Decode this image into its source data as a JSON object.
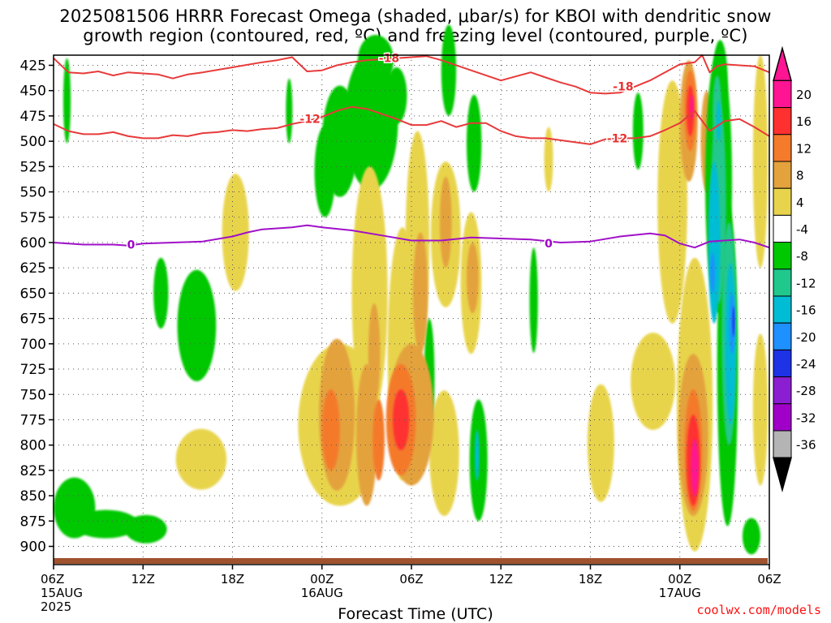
{
  "title_line1": "2025081506 HRRR Forecast Omega (shaded, μbar/s) for KBOI with dendritic snow",
  "title_line2": "growth region (contoured, red, ºC) and freezing level (contoured, purple, ºC)",
  "x_axis_label": "Forecast Time (UTC)",
  "credit": "coolwx.com/models",
  "chart_data": {
    "type": "heatmap",
    "x_ticks": [
      {
        "label": "06Z",
        "sub": [
          "15AUG",
          "2025"
        ],
        "hour": 0
      },
      {
        "label": "12Z",
        "sub": [],
        "hour": 6
      },
      {
        "label": "18Z",
        "sub": [],
        "hour": 12
      },
      {
        "label": "00Z",
        "sub": [
          "16AUG"
        ],
        "hour": 18
      },
      {
        "label": "06Z",
        "sub": [],
        "hour": 24
      },
      {
        "label": "12Z",
        "sub": [],
        "hour": 30
      },
      {
        "label": "18Z",
        "sub": [],
        "hour": 36
      },
      {
        "label": "00Z",
        "sub": [
          "17AUG"
        ],
        "hour": 42
      },
      {
        "label": "06Z",
        "sub": [],
        "hour": 48
      }
    ],
    "y_ticks": [
      425,
      450,
      475,
      500,
      525,
      550,
      575,
      600,
      625,
      650,
      675,
      700,
      725,
      750,
      775,
      800,
      825,
      850,
      875,
      900
    ],
    "y_range": [
      415,
      918
    ],
    "x_range": [
      0,
      48
    ],
    "colorbar": {
      "labels": [
        20,
        16,
        12,
        8,
        4,
        -4,
        -8,
        -12,
        -16,
        -20,
        -24,
        -28,
        -32,
        -36
      ],
      "bins": [
        {
          "color": "#ff1493"
        },
        {
          "color": "#ff3030"
        },
        {
          "color": "#f47a2c"
        },
        {
          "color": "#e4a23c"
        },
        {
          "color": "#e8d44c"
        },
        {
          "color": "#ffffff"
        },
        {
          "color": "#00c800"
        },
        {
          "color": "#20c88c"
        },
        {
          "color": "#00bcd4"
        },
        {
          "color": "#1e90ff"
        },
        {
          "color": "#1e32e6"
        },
        {
          "color": "#8c1ed2"
        },
        {
          "color": "#a000c8"
        },
        {
          "color": "#b4b4b4"
        }
      ]
    },
    "contour_labels": [
      {
        "text": "-18",
        "color": "#e83030"
      },
      {
        "text": "-18",
        "color": "#e83030"
      },
      {
        "text": "-12",
        "color": "#e83030"
      },
      {
        "text": "-12",
        "color": "#e83030"
      },
      {
        "text": "0",
        "color": "#a000c8"
      },
      {
        "text": "0",
        "color": "#a000c8"
      }
    ],
    "freezing_level": [
      [
        0,
        600
      ],
      [
        2,
        602
      ],
      [
        4,
        602
      ],
      [
        5,
        603
      ],
      [
        6,
        601
      ],
      [
        8,
        600
      ],
      [
        10,
        599
      ],
      [
        12,
        594
      ],
      [
        13,
        590
      ],
      [
        14,
        587
      ],
      [
        16,
        585
      ],
      [
        17,
        583
      ],
      [
        18,
        585
      ],
      [
        20,
        588
      ],
      [
        22,
        593
      ],
      [
        24,
        598
      ],
      [
        26,
        598
      ],
      [
        28,
        595
      ],
      [
        30,
        596
      ],
      [
        32,
        597
      ],
      [
        34,
        600
      ],
      [
        36,
        599
      ],
      [
        38,
        594
      ],
      [
        40,
        591
      ],
      [
        41,
        593
      ],
      [
        42,
        601
      ],
      [
        43,
        605
      ],
      [
        44,
        599
      ],
      [
        45,
        598
      ],
      [
        46,
        597
      ],
      [
        47,
        600
      ],
      [
        48,
        605
      ]
    ],
    "dgz_top": [
      [
        0,
        418
      ],
      [
        1,
        432
      ],
      [
        2,
        433
      ],
      [
        3,
        431
      ],
      [
        4,
        435
      ],
      [
        5,
        432
      ],
      [
        6,
        433
      ],
      [
        7,
        434
      ],
      [
        8,
        438
      ],
      [
        9,
        434
      ],
      [
        10,
        432
      ],
      [
        12,
        427
      ],
      [
        14,
        422
      ],
      [
        15,
        420
      ],
      [
        16,
        417
      ],
      [
        17,
        431
      ],
      [
        18,
        430
      ],
      [
        19,
        425
      ],
      [
        20,
        422
      ],
      [
        21,
        420
      ],
      [
        22,
        419
      ],
      [
        23,
        418
      ],
      [
        24,
        417
      ],
      [
        25,
        416
      ],
      [
        26,
        420
      ],
      [
        28,
        430
      ],
      [
        30,
        440
      ],
      [
        31,
        436
      ],
      [
        32,
        432
      ],
      [
        33,
        437
      ],
      [
        34,
        442
      ],
      [
        35,
        446
      ],
      [
        36,
        452
      ],
      [
        37,
        453
      ],
      [
        38,
        452
      ],
      [
        39,
        446
      ],
      [
        40,
        440
      ],
      [
        41,
        432
      ],
      [
        42,
        424
      ],
      [
        43,
        422
      ],
      [
        43.5,
        415
      ],
      [
        44,
        432
      ],
      [
        44.5,
        426
      ],
      [
        45,
        424
      ],
      [
        46,
        425
      ],
      [
        47,
        426
      ],
      [
        48,
        432
      ]
    ],
    "dgz_bottom": [
      [
        0,
        483
      ],
      [
        1,
        490
      ],
      [
        2,
        493
      ],
      [
        3,
        493
      ],
      [
        4,
        491
      ],
      [
        5,
        495
      ],
      [
        6,
        497
      ],
      [
        7,
        497
      ],
      [
        8,
        494
      ],
      [
        9,
        495
      ],
      [
        10,
        492
      ],
      [
        11,
        491
      ],
      [
        12,
        489
      ],
      [
        13,
        490
      ],
      [
        14,
        488
      ],
      [
        15,
        487
      ],
      [
        16,
        483
      ],
      [
        17,
        480
      ],
      [
        18,
        476
      ],
      [
        19,
        470
      ],
      [
        20,
        466
      ],
      [
        21,
        468
      ],
      [
        22,
        473
      ],
      [
        23,
        478
      ],
      [
        24,
        484
      ],
      [
        25,
        484
      ],
      [
        26,
        480
      ],
      [
        27,
        486
      ],
      [
        28,
        482
      ],
      [
        29,
        482
      ],
      [
        30,
        490
      ],
      [
        31,
        495
      ],
      [
        32,
        497
      ],
      [
        33,
        497
      ],
      [
        34,
        499
      ],
      [
        35,
        501
      ],
      [
        36,
        503
      ],
      [
        37,
        498
      ],
      [
        38,
        497
      ],
      [
        39,
        497
      ],
      [
        40,
        495
      ],
      [
        41,
        489
      ],
      [
        42,
        482
      ],
      [
        43,
        470
      ],
      [
        44,
        490
      ],
      [
        45,
        480
      ],
      [
        46,
        478
      ],
      [
        47,
        486
      ],
      [
        48,
        495
      ]
    ]
  }
}
